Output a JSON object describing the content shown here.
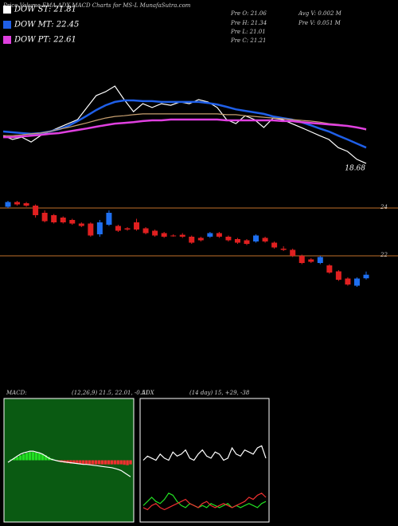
{
  "chart_data": [
    {
      "type": "line",
      "title": "Price,Volume,EMA,ADX,MACD Charts for MS-L MunafaSutra.com",
      "legend": "top-left",
      "ylim": [
        20.86,
        25.7
      ],
      "annotations": [
        "18.68"
      ],
      "stats": [
        "Pre O: 21.06",
        "Avg V: 0.002 M",
        "Pre H: 21.34",
        "Pre V: 0.051 M",
        "Pre L: 21.01",
        "Pre C: 21.21"
      ],
      "series": [
        {
          "name": "DOW ST: 21.81",
          "color": "#ffffff",
          "values": [
            22.26,
            22.11,
            22.2,
            22.01,
            22.26,
            22.42,
            22.58,
            22.73,
            22.89,
            23.36,
            23.83,
            23.98,
            24.2,
            23.67,
            23.2,
            23.51,
            23.36,
            23.51,
            23.45,
            23.58,
            23.51,
            23.67,
            23.58,
            23.36,
            22.89,
            22.73,
            23.04,
            22.89,
            22.58,
            22.95,
            22.89,
            22.73,
            22.58,
            22.42,
            22.26,
            22.11,
            21.79,
            21.64,
            21.33,
            21.17
          ]
        },
        {
          "name": "DOW MT: 22.45",
          "color": "#1f5fe8",
          "values": [
            22.42,
            22.39,
            22.36,
            22.33,
            22.36,
            22.42,
            22.51,
            22.64,
            22.83,
            23.04,
            23.26,
            23.45,
            23.58,
            23.64,
            23.64,
            23.61,
            23.61,
            23.58,
            23.58,
            23.58,
            23.58,
            23.58,
            23.54,
            23.48,
            23.39,
            23.29,
            23.23,
            23.17,
            23.11,
            23.01,
            22.95,
            22.89,
            22.79,
            22.67,
            22.54,
            22.42,
            22.26,
            22.11,
            21.95,
            21.79
          ]
        },
        {
          "color": "#c8a070",
          "values": [
            22.26,
            22.26,
            22.29,
            22.33,
            22.36,
            22.42,
            22.51,
            22.58,
            22.67,
            22.76,
            22.86,
            22.95,
            23.01,
            23.04,
            23.08,
            23.11,
            23.11,
            23.11,
            23.11,
            23.11,
            23.11,
            23.11,
            23.11,
            23.11,
            23.08,
            23.08,
            23.04,
            23.01,
            22.98,
            22.95,
            22.92,
            22.89,
            22.86,
            22.83,
            22.79,
            22.73,
            22.7,
            22.64,
            22.58,
            22.48
          ]
        },
        {
          "name": "DOW PT: 22.61",
          "color": "#e040e0",
          "values": [
            22.2,
            22.2,
            22.23,
            22.26,
            22.29,
            22.33,
            22.36,
            22.42,
            22.48,
            22.54,
            22.61,
            22.67,
            22.73,
            22.76,
            22.79,
            22.83,
            22.86,
            22.86,
            22.89,
            22.89,
            22.89,
            22.89,
            22.89,
            22.89,
            22.86,
            22.86,
            22.86,
            22.86,
            22.86,
            22.86,
            22.83,
            22.83,
            22.79,
            22.76,
            22.73,
            22.7,
            22.67,
            22.64,
            22.58,
            22.51
          ]
        }
      ]
    },
    {
      "type": "candlestick",
      "up_color": "#1e6ff0",
      "down_color": "#e02020",
      "grid_color": "#c0702a",
      "ylim": [
        20.4,
        25.0
      ],
      "yticks": [
        22,
        24
      ],
      "open": [
        24.05,
        24.25,
        24.2,
        24.1,
        23.8,
        23.7,
        23.6,
        23.5,
        23.35,
        23.35,
        22.9,
        23.3,
        23.25,
        23.15,
        23.4,
        23.15,
        23.05,
        22.95,
        22.85,
        22.88,
        22.8,
        22.75,
        22.8,
        22.95,
        22.8,
        22.7,
        22.65,
        22.6,
        22.75,
        22.55,
        22.3,
        22.25,
        22.0,
        21.85,
        21.7,
        21.6,
        21.35,
        21.05,
        20.75,
        21.06
      ],
      "high": [
        24.3,
        24.3,
        24.25,
        24.15,
        23.9,
        23.75,
        23.65,
        23.55,
        23.4,
        23.4,
        23.5,
        23.9,
        23.3,
        23.2,
        23.55,
        23.2,
        23.1,
        23.0,
        22.9,
        22.95,
        22.85,
        22.8,
        23.0,
        23.0,
        22.85,
        22.75,
        22.7,
        22.9,
        22.8,
        22.6,
        22.4,
        22.3,
        22.05,
        21.9,
        22.0,
        21.65,
        21.4,
        21.1,
        21.1,
        21.34
      ],
      "low": [
        24.0,
        24.1,
        24.05,
        23.6,
        23.4,
        23.35,
        23.35,
        23.3,
        23.2,
        22.8,
        22.8,
        23.25,
        23.0,
        23.05,
        23.05,
        22.9,
        22.8,
        22.75,
        22.8,
        22.75,
        22.5,
        22.6,
        22.75,
        22.75,
        22.6,
        22.5,
        22.45,
        22.55,
        22.55,
        22.3,
        22.2,
        21.95,
        21.65,
        21.7,
        21.65,
        21.25,
        20.95,
        20.75,
        20.7,
        21.01
      ],
      "close": [
        24.25,
        24.15,
        24.1,
        23.7,
        23.45,
        23.4,
        23.4,
        23.35,
        23.25,
        22.85,
        23.4,
        23.8,
        23.05,
        23.1,
        23.1,
        22.95,
        22.85,
        22.8,
        22.82,
        22.8,
        22.55,
        22.65,
        22.95,
        22.8,
        22.65,
        22.55,
        22.5,
        22.85,
        22.6,
        22.35,
        22.25,
        22.0,
        21.7,
        21.75,
        21.95,
        21.3,
        21.0,
        20.8,
        21.05,
        21.21
      ]
    },
    {
      "type": "macd",
      "title": "MACD:",
      "subtitle": "(12,26,9) 21.5, 22.01, -0.51",
      "background": "#0a5a12",
      "up_color": "#22dd22",
      "down_color": "#ee3030",
      "ylim": [
        -1.5,
        1.5
      ],
      "histogram": [
        0,
        0.02,
        0.05,
        0.08,
        0.12,
        0.15,
        0.18,
        0.2,
        0.2,
        0.19,
        0.17,
        0.15,
        0.12,
        0.08,
        0.04,
        0,
        -0.03,
        -0.05,
        -0.06,
        -0.07,
        -0.08,
        -0.08,
        -0.08,
        -0.09,
        -0.1,
        -0.1,
        -0.1,
        -0.1,
        -0.1,
        -0.1,
        -0.1,
        -0.1,
        -0.1,
        -0.1,
        -0.1,
        -0.1,
        -0.1,
        -0.11,
        -0.12,
        -0.1
      ],
      "series": [
        {
          "color": "#ffffff",
          "values": [
            -0.05,
            0,
            0.05,
            0.1,
            0.15,
            0.18,
            0.2,
            0.22,
            0.22,
            0.2,
            0.18,
            0.15,
            0.1,
            0.05,
            0.02,
            0,
            -0.02,
            -0.03,
            -0.04,
            -0.05,
            -0.06,
            -0.07,
            -0.08,
            -0.09,
            -0.1,
            -0.1,
            -0.11,
            -0.12,
            -0.13,
            -0.14,
            -0.15,
            -0.16,
            -0.17,
            -0.18,
            -0.2,
            -0.22,
            -0.25,
            -0.3,
            -0.35,
            -0.4
          ]
        }
      ]
    },
    {
      "type": "line",
      "title": "ADX",
      "subtitle": "(14 day) 15, +29, -38",
      "background": "#000000",
      "ylim": [
        0,
        60
      ],
      "series": [
        {
          "color": "#ffffff",
          "values": [
            30,
            32,
            31,
            30,
            33,
            31,
            30,
            34,
            32,
            33,
            35,
            31,
            30,
            33,
            35,
            32,
            31,
            34,
            33,
            30,
            31,
            36,
            33,
            32,
            35,
            34,
            33,
            36,
            37,
            31
          ]
        },
        {
          "color": "#22dd22",
          "values": [
            8,
            10,
            12,
            10,
            9,
            11,
            14,
            13,
            10,
            8,
            7,
            9,
            8,
            7,
            8,
            7,
            9,
            8,
            7,
            8,
            9,
            7,
            8,
            7,
            8,
            9,
            8,
            7,
            9,
            10
          ]
        },
        {
          "color": "#ee3030",
          "values": [
            7,
            6,
            8,
            9,
            7,
            6,
            7,
            8,
            9,
            10,
            11,
            9,
            8,
            7,
            9,
            10,
            8,
            7,
            8,
            9,
            8,
            7,
            8,
            9,
            10,
            12,
            11,
            13,
            14,
            12
          ]
        }
      ]
    }
  ]
}
